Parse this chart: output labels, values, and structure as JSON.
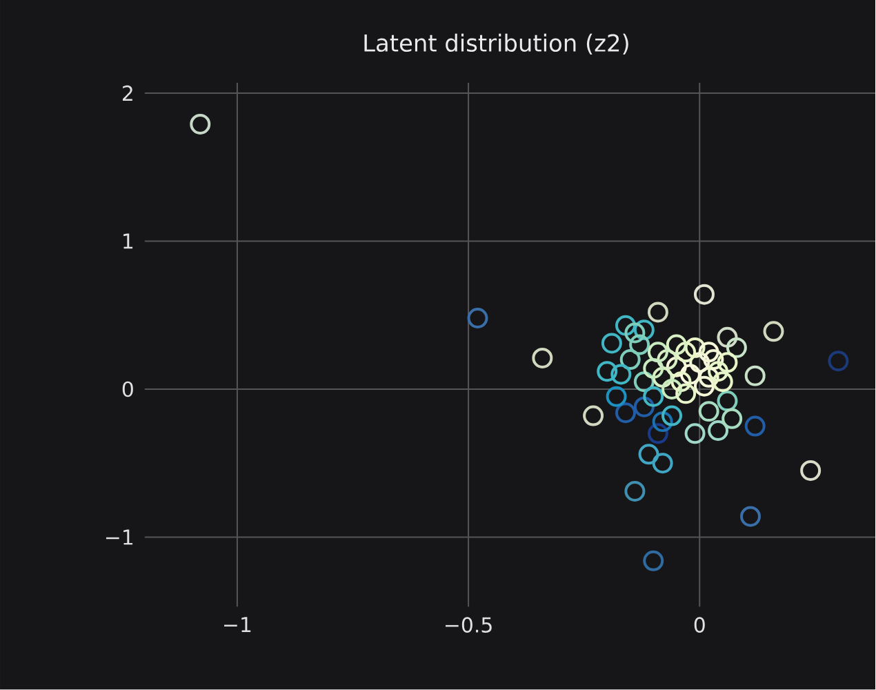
{
  "chart_data": {
    "type": "scatter",
    "title": "Latent distribution (z2)",
    "xlim": [
      -1.2,
      0.38
    ],
    "ylim": [
      -1.47,
      2.07
    ],
    "xticks": [
      {
        "value": -1,
        "label": "−1"
      },
      {
        "value": -0.5,
        "label": "−0.5"
      },
      0
    ],
    "yticks": [
      {
        "value": -1,
        "label": "−1"
      },
      0,
      1,
      2
    ],
    "grid": true,
    "marker": "circle",
    "x": [
      -1.08,
      -0.48,
      -0.34,
      -0.23,
      0.01,
      0.16,
      0.3,
      0.24,
      0.11,
      -0.1,
      -0.14,
      -0.09,
      -0.16,
      0.12,
      0.12,
      0.06,
      -0.01,
      0.04,
      -0.08,
      -0.11,
      -0.09,
      -0.2,
      -0.19,
      -0.16,
      -0.12,
      -0.12,
      -0.08,
      -0.18,
      -0.13,
      -0.15,
      -0.17,
      -0.12,
      -0.1,
      -0.14,
      0.06,
      0.02,
      -0.06,
      0.07,
      0.08,
      -0.05,
      -0.02,
      0.0,
      -0.04,
      0.02,
      -0.07,
      -0.03,
      0.03,
      -0.08,
      0.01,
      -0.06,
      0.04,
      -0.01,
      -0.1,
      0.05,
      -0.03,
      0.02,
      -0.09,
      0.06,
      -0.05
    ],
    "values": [
      1.79,
      0.48,
      0.21,
      -0.18,
      0.64,
      0.39,
      0.19,
      -0.55,
      -0.86,
      -1.16,
      -0.69,
      0.52,
      -0.16,
      -0.25,
      0.09,
      0.35,
      -0.3,
      -0.28,
      -0.5,
      -0.44,
      -0.3,
      0.12,
      0.31,
      0.43,
      0.4,
      -0.12,
      -0.22,
      -0.05,
      0.3,
      0.2,
      0.1,
      0.05,
      -0.05,
      0.38,
      -0.08,
      -0.15,
      -0.18,
      -0.2,
      0.28,
      0.15,
      0.1,
      0.18,
      0.05,
      0.08,
      0.2,
      0.25,
      0.2,
      0.08,
      0.02,
      0.0,
      0.12,
      0.28,
      0.14,
      0.05,
      -0.03,
      0.25,
      0.25,
      0.18,
      0.3
    ],
    "colors": [
      "#c8d8c8",
      "#3a6ea8",
      "#d0d8c0",
      "#d0d8c0",
      "#e0e4d0",
      "#d0d8c0",
      "#1a3a7a",
      "#d8dcc8",
      "#3a6ea8",
      "#2f6aa0",
      "#3f8fb0",
      "#d0d8c0",
      "#225ea8",
      "#225ea8",
      "#c8e0c8",
      "#d0dcc8",
      "#9fd8c8",
      "#9fd8c8",
      "#41a6c4",
      "#41a6c4",
      "#1a3a8a",
      "#41b6c4",
      "#41b6c4",
      "#41b6c4",
      "#41b6c4",
      "#225ea8",
      "#1d71b0",
      "#1d91c0",
      "#7fcdbb",
      "#7fcdbb",
      "#41b6c4",
      "#7fcdbb",
      "#41b6c4",
      "#7fcdbb",
      "#7fcdbb",
      "#a8dcc0",
      "#41b6c4",
      "#a8dcc0",
      "#c8e4c8",
      "#f5f7d8",
      "#fbfbe0",
      "#f5f7d8",
      "#e8f5c8",
      "#f5f7d8",
      "#d8f0c4",
      "#e8f5c8",
      "#f5f7d8",
      "#d8f0c4",
      "#f5f7d8",
      "#c8ecc0",
      "#e8f5c8",
      "#e8f5c8",
      "#c8ecc0",
      "#e8f5c8",
      "#e8f5c8",
      "#f5f7d8",
      "#c8ecc0",
      "#e8f5c8",
      "#d8f0c4"
    ]
  }
}
